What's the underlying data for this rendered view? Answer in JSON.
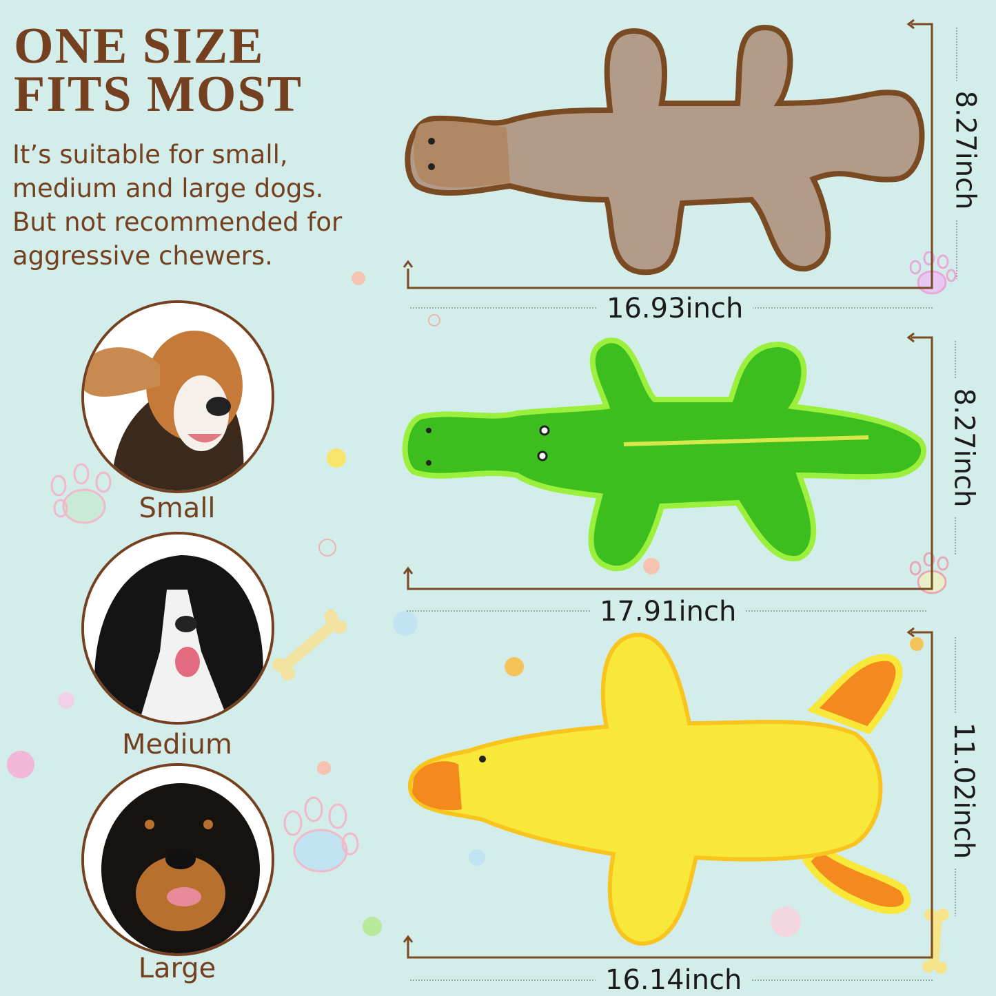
{
  "headline": {
    "line1": "ONE SIZE",
    "line2": "FITS MOST"
  },
  "description": [
    "It’s suitable for small,",
    "medium and large dogs.",
    "But not recommended for",
    "aggressive chewers."
  ],
  "dog_sizes": [
    {
      "label": "Small",
      "breed_icon": "beagle-photo"
    },
    {
      "label": "Medium",
      "breed_icon": "border-collie-photo"
    },
    {
      "label": "Large",
      "breed_icon": "rottweiler-photo"
    }
  ],
  "toys": [
    {
      "name_icon": "platypus-toy",
      "width": "16.93inch",
      "height": "8.27inch",
      "color": "#b39b8a"
    },
    {
      "name_icon": "crocodile-toy",
      "width": "17.91inch",
      "height": "8.27inch",
      "color": "#3cbf1e"
    },
    {
      "name_icon": "duck-toy",
      "width": "16.14inch",
      "height": "11.02inch",
      "color": "#f7e83a"
    }
  ],
  "colors": {
    "background": "#d3eeea",
    "text_brown": "#74401f"
  }
}
